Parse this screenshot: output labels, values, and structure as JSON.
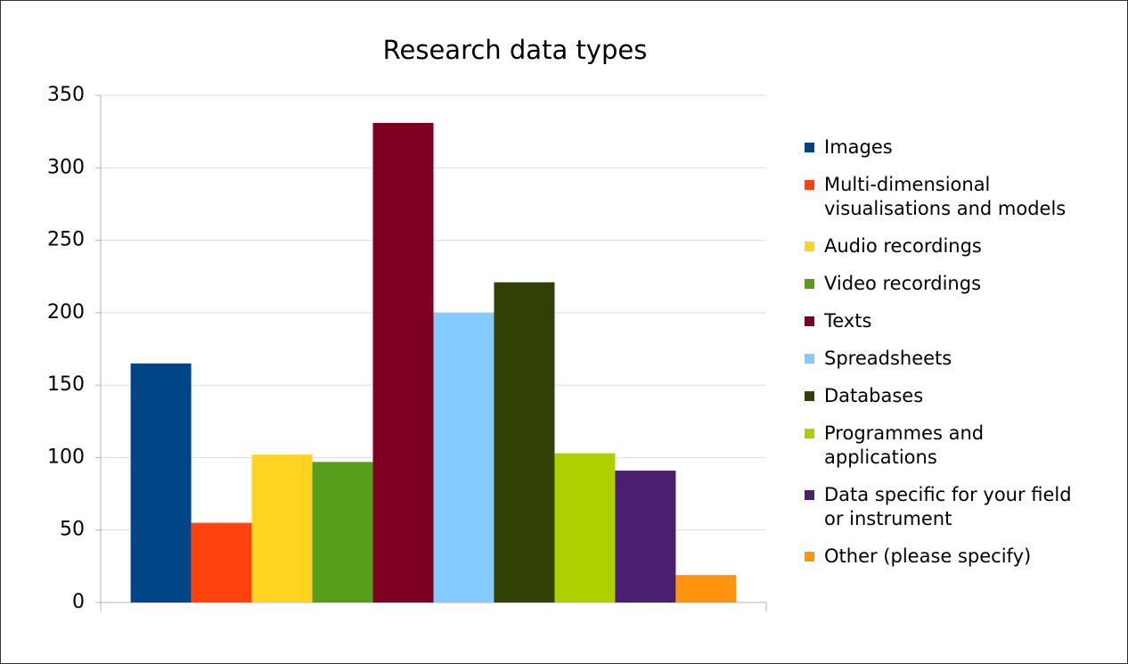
{
  "chart_data": {
    "type": "bar",
    "title": "Research data types",
    "categories": [
      null
    ],
    "series": [
      {
        "name": "Images",
        "color": "#004586",
        "values": [
          165
        ]
      },
      {
        "name": "Multi-dimensional visualisations and models",
        "color": "#ff420e",
        "values": [
          55
        ]
      },
      {
        "name": "Audio recordings",
        "color": "#ffd320",
        "values": [
          102
        ]
      },
      {
        "name": "Video recordings",
        "color": "#579d1c",
        "values": [
          97
        ]
      },
      {
        "name": "Texts",
        "color": "#7e0021",
        "values": [
          331
        ]
      },
      {
        "name": "Spreadsheets",
        "color": "#83caff",
        "values": [
          200
        ]
      },
      {
        "name": "Databases",
        "color": "#314004",
        "values": [
          221
        ]
      },
      {
        "name": "Programmes and applications",
        "color": "#aecf00",
        "values": [
          103
        ]
      },
      {
        "name": "Data specific for your field or instrument",
        "color": "#4b1f6f",
        "values": [
          91
        ]
      },
      {
        "name": "Other (please specify)",
        "color": "#ff950e",
        "values": [
          19
        ]
      }
    ],
    "ylim": [
      0,
      350
    ],
    "yticks": [
      0,
      50,
      100,
      150,
      200,
      250,
      300,
      350
    ],
    "grid": true,
    "legend": "right"
  }
}
